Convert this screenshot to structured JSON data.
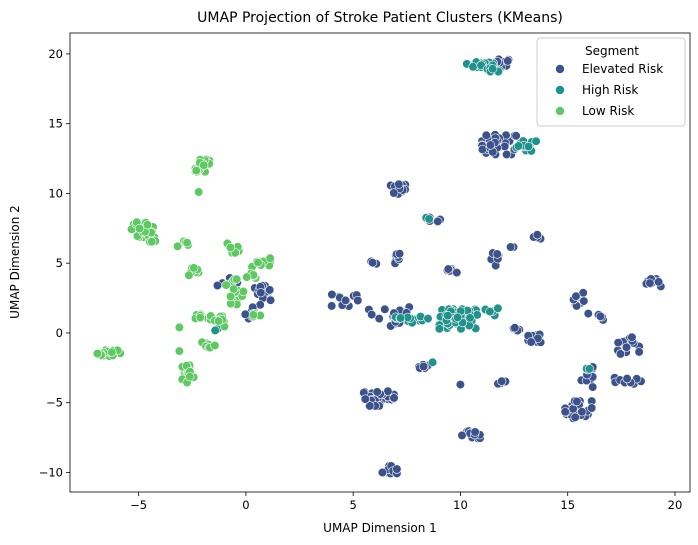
{
  "chart_data": {
    "type": "scatter",
    "title": "UMAP Projection of Stroke Patient Clusters (KMeans)",
    "xlabel": "UMAP Dimension 1",
    "ylabel": "UMAP Dimension 2",
    "xlim": [
      -8.2,
      20.7
    ],
    "ylim": [
      -11.4,
      21.5
    ],
    "xticks": [
      -5,
      0,
      5,
      10,
      15,
      20
    ],
    "yticks": [
      -10,
      -5,
      0,
      5,
      10,
      15,
      20
    ],
    "grid": false,
    "legend": {
      "title": "Segment",
      "position": "top-right"
    },
    "series": [
      {
        "name": "Elevated Risk",
        "color": "#3b528b",
        "clusters": [
          {
            "cx": 11.9,
            "cy": 19.3,
            "rx": 0.5,
            "ry": 0.4,
            "n": 18
          },
          {
            "cx": 11.8,
            "cy": 13.5,
            "rx": 0.9,
            "ry": 0.8,
            "n": 35
          },
          {
            "cx": 7.1,
            "cy": 10.3,
            "rx": 0.4,
            "ry": 0.4,
            "n": 14
          },
          {
            "cx": 8.7,
            "cy": 8.1,
            "rx": 0.4,
            "ry": 0.2,
            "n": 6
          },
          {
            "cx": 13.6,
            "cy": 6.9,
            "rx": 0.3,
            "ry": 0.2,
            "n": 5
          },
          {
            "cx": 5.9,
            "cy": 5.0,
            "rx": 0.2,
            "ry": 0.15,
            "n": 3
          },
          {
            "cx": 7.0,
            "cy": 5.4,
            "rx": 0.2,
            "ry": 0.6,
            "n": 8
          },
          {
            "cx": 9.6,
            "cy": 4.4,
            "rx": 0.4,
            "ry": 0.2,
            "n": 6
          },
          {
            "cx": 11.7,
            "cy": 5.2,
            "rx": 0.3,
            "ry": 0.6,
            "n": 7
          },
          {
            "cx": 12.4,
            "cy": 6.2,
            "rx": 0.1,
            "ry": 0.1,
            "n": 2
          },
          {
            "cx": 4.6,
            "cy": 2.4,
            "rx": 0.7,
            "ry": 0.6,
            "n": 12
          },
          {
            "cx": 6.7,
            "cy": 1.2,
            "rx": 1.1,
            "ry": 0.8,
            "n": 22
          },
          {
            "cx": 8.3,
            "cy": -2.4,
            "rx": 0.4,
            "ry": 0.2,
            "n": 6
          },
          {
            "cx": 10.0,
            "cy": -3.7,
            "rx": 0.1,
            "ry": 0.1,
            "n": 1
          },
          {
            "cx": 11.9,
            "cy": -3.5,
            "rx": 0.3,
            "ry": 0.2,
            "n": 5
          },
          {
            "cx": 12.7,
            "cy": 0.2,
            "rx": 0.4,
            "ry": 0.3,
            "n": 5
          },
          {
            "cx": 13.6,
            "cy": -0.3,
            "rx": 0.5,
            "ry": 0.5,
            "n": 10
          },
          {
            "cx": 15.4,
            "cy": 2.3,
            "rx": 0.4,
            "ry": 0.7,
            "n": 10
          },
          {
            "cx": 16.4,
            "cy": 1.2,
            "rx": 0.5,
            "ry": 0.3,
            "n": 6
          },
          {
            "cx": 17.8,
            "cy": -0.8,
            "rx": 0.6,
            "ry": 0.8,
            "n": 14
          },
          {
            "cx": 18.9,
            "cy": 3.6,
            "rx": 0.5,
            "ry": 0.3,
            "n": 10
          },
          {
            "cx": 17.8,
            "cy": -3.4,
            "rx": 0.7,
            "ry": 0.3,
            "n": 12
          },
          {
            "cx": 15.9,
            "cy": -3.0,
            "rx": 0.3,
            "ry": 1.0,
            "n": 12
          },
          {
            "cx": 15.5,
            "cy": -5.5,
            "rx": 0.7,
            "ry": 0.7,
            "n": 30
          },
          {
            "cx": 6.2,
            "cy": -4.7,
            "rx": 0.8,
            "ry": 0.6,
            "n": 35
          },
          {
            "cx": 10.6,
            "cy": -7.3,
            "rx": 0.6,
            "ry": 0.3,
            "n": 12
          },
          {
            "cx": 6.6,
            "cy": -9.8,
            "rx": 0.5,
            "ry": 0.3,
            "n": 12
          },
          {
            "cx": 0.8,
            "cy": 2.5,
            "rx": 0.6,
            "ry": 1.0,
            "n": 18
          },
          {
            "cx": -0.8,
            "cy": 3.6,
            "rx": 0.6,
            "ry": 0.6,
            "n": 8
          },
          {
            "cx": 0.2,
            "cy": 1.2,
            "rx": 0.3,
            "ry": 0.3,
            "n": 4
          }
        ]
      },
      {
        "name": "High Risk",
        "color": "#21918c",
        "clusters": [
          {
            "cx": 11.0,
            "cy": 19.3,
            "rx": 0.8,
            "ry": 0.4,
            "n": 18
          },
          {
            "cx": 11.5,
            "cy": 18.8,
            "rx": 0.5,
            "ry": 0.2,
            "n": 6
          },
          {
            "cx": 13.0,
            "cy": 13.4,
            "rx": 0.6,
            "ry": 0.4,
            "n": 14
          },
          {
            "cx": 9.9,
            "cy": 1.0,
            "rx": 1.0,
            "ry": 0.8,
            "n": 70
          },
          {
            "cx": 8.1,
            "cy": 1.0,
            "rx": 0.6,
            "ry": 0.3,
            "n": 10
          },
          {
            "cx": 11.5,
            "cy": 1.5,
            "rx": 0.4,
            "ry": 0.3,
            "n": 6
          },
          {
            "cx": 7.2,
            "cy": 1.2,
            "rx": 0.4,
            "ry": 0.2,
            "n": 5
          },
          {
            "cx": 8.4,
            "cy": 8.2,
            "rx": 0.2,
            "ry": 0.2,
            "n": 3
          },
          {
            "cx": 8.7,
            "cy": -2.1,
            "rx": 0.1,
            "ry": 0.1,
            "n": 1
          },
          {
            "cx": 15.9,
            "cy": -2.4,
            "rx": 0.2,
            "ry": 0.2,
            "n": 2
          },
          {
            "cx": -1.3,
            "cy": 0.2,
            "rx": 0.15,
            "ry": 0.15,
            "n": 2
          }
        ]
      },
      {
        "name": "Low Risk",
        "color": "#5ec962",
        "clusters": [
          {
            "cx": -2.0,
            "cy": 12.0,
            "rx": 0.4,
            "ry": 0.5,
            "n": 25
          },
          {
            "cx": -2.2,
            "cy": 10.1,
            "rx": 0.05,
            "ry": 0.05,
            "n": 1
          },
          {
            "cx": -4.8,
            "cy": 7.4,
            "rx": 0.6,
            "ry": 0.6,
            "n": 30
          },
          {
            "cx": -4.4,
            "cy": 6.5,
            "rx": 0.2,
            "ry": 0.2,
            "n": 3
          },
          {
            "cx": -3.0,
            "cy": 6.4,
            "rx": 0.4,
            "ry": 0.3,
            "n": 6
          },
          {
            "cx": -2.4,
            "cy": 4.4,
            "rx": 0.4,
            "ry": 0.3,
            "n": 8
          },
          {
            "cx": -0.6,
            "cy": 6.1,
            "rx": 0.3,
            "ry": 0.4,
            "n": 8
          },
          {
            "cx": 0.6,
            "cy": 5.0,
            "rx": 0.6,
            "ry": 0.4,
            "n": 10
          },
          {
            "cx": -0.6,
            "cy": 2.8,
            "rx": 0.6,
            "ry": 1.2,
            "n": 14
          },
          {
            "cx": 0.3,
            "cy": 4.0,
            "rx": 0.3,
            "ry": 0.3,
            "n": 5
          },
          {
            "cx": -2.0,
            "cy": 1.1,
            "rx": 0.4,
            "ry": 0.3,
            "n": 10
          },
          {
            "cx": -1.2,
            "cy": 0.9,
            "rx": 0.5,
            "ry": 0.5,
            "n": 10
          },
          {
            "cx": 0.4,
            "cy": 1.3,
            "rx": 0.3,
            "ry": 0.2,
            "n": 4
          },
          {
            "cx": -1.8,
            "cy": -0.9,
            "rx": 0.4,
            "ry": 0.5,
            "n": 8
          },
          {
            "cx": -2.7,
            "cy": -2.9,
            "rx": 0.3,
            "ry": 0.8,
            "n": 20
          },
          {
            "cx": -3.1,
            "cy": -1.3,
            "rx": 0.1,
            "ry": 0.1,
            "n": 1
          },
          {
            "cx": -3.1,
            "cy": 0.4,
            "rx": 0.1,
            "ry": 0.1,
            "n": 1
          },
          {
            "cx": -6.3,
            "cy": -1.4,
            "rx": 0.5,
            "ry": 0.3,
            "n": 20
          },
          {
            "cx": -6.8,
            "cy": -1.5,
            "rx": 0.2,
            "ry": 0.2,
            "n": 4
          }
        ]
      }
    ]
  }
}
